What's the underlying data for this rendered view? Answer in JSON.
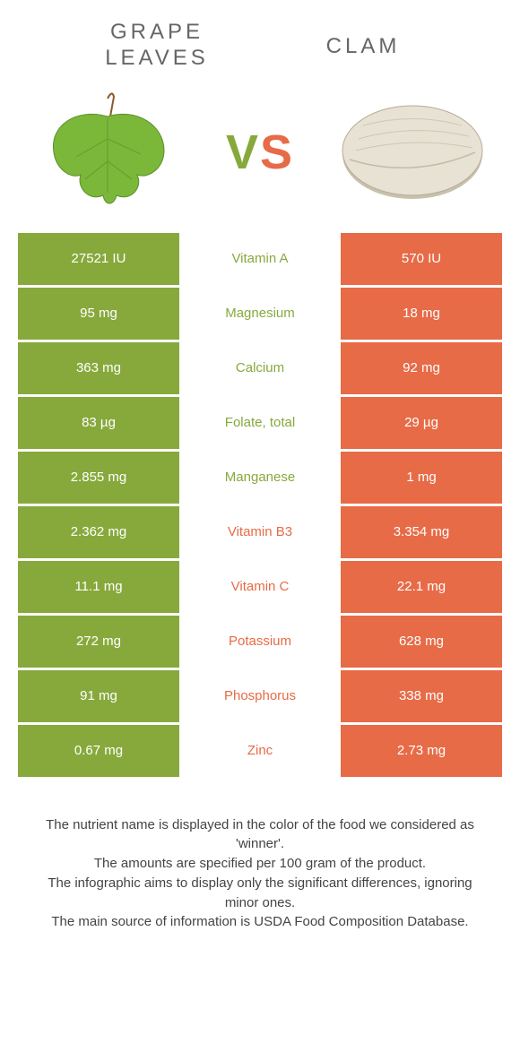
{
  "colors": {
    "left": "#87a93c",
    "right": "#e76b47",
    "leaf_fill": "#7bb83a",
    "leaf_dark": "#5a8f28",
    "clam_light": "#e8e2d4",
    "clam_shadow": "#c9c0ad",
    "clam_ridge": "#b5ab95"
  },
  "header": {
    "left_line1": "GRAPE",
    "left_line2": "LEAVES",
    "right": "CLAM",
    "vs_v": "V",
    "vs_s": "S"
  },
  "rows": [
    {
      "nutrient": "Vitamin A",
      "left": "27521 IU",
      "right": "570 IU",
      "winner": "left"
    },
    {
      "nutrient": "Magnesium",
      "left": "95 mg",
      "right": "18 mg",
      "winner": "left"
    },
    {
      "nutrient": "Calcium",
      "left": "363 mg",
      "right": "92 mg",
      "winner": "left"
    },
    {
      "nutrient": "Folate, total",
      "left": "83 µg",
      "right": "29 µg",
      "winner": "left"
    },
    {
      "nutrient": "Manganese",
      "left": "2.855 mg",
      "right": "1 mg",
      "winner": "left"
    },
    {
      "nutrient": "Vitamin B3",
      "left": "2.362 mg",
      "right": "3.354 mg",
      "winner": "right"
    },
    {
      "nutrient": "Vitamin C",
      "left": "11.1 mg",
      "right": "22.1 mg",
      "winner": "right"
    },
    {
      "nutrient": "Potassium",
      "left": "272 mg",
      "right": "628 mg",
      "winner": "right"
    },
    {
      "nutrient": "Phosphorus",
      "left": "91 mg",
      "right": "338 mg",
      "winner": "right"
    },
    {
      "nutrient": "Zinc",
      "left": "0.67 mg",
      "right": "2.73 mg",
      "winner": "right"
    }
  ],
  "footer": {
    "l1": "The nutrient name is displayed in the color of the food we considered as 'winner'.",
    "l2": "The amounts are specified per 100 gram of the product.",
    "l3": "The infographic aims to display only the significant differences, ignoring minor ones.",
    "l4": "The main source of information is USDA Food Composition Database."
  }
}
